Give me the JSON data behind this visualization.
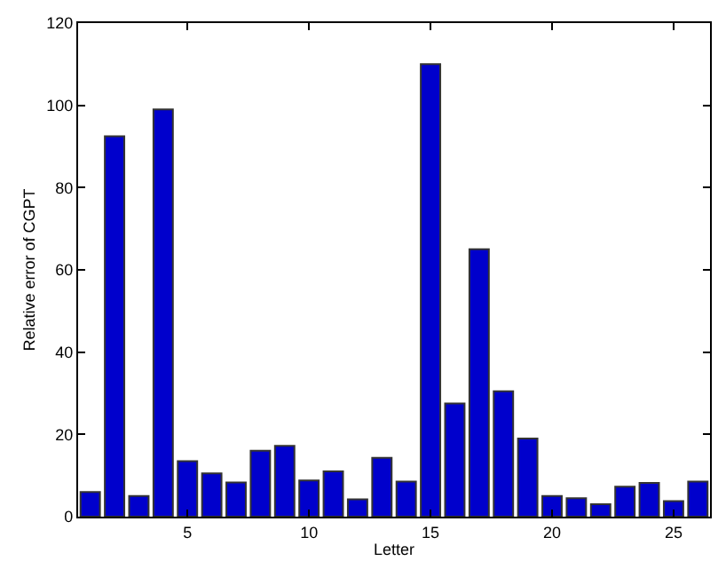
{
  "chart_data": {
    "type": "bar",
    "xlabel": "Letter",
    "ylabel": "Relative error of CGPT",
    "x": [
      1,
      2,
      3,
      4,
      5,
      6,
      7,
      8,
      9,
      10,
      11,
      12,
      13,
      14,
      15,
      16,
      17,
      18,
      19,
      20,
      21,
      22,
      23,
      24,
      25,
      26
    ],
    "values": [
      6,
      92.5,
      5,
      99,
      13.5,
      10.5,
      8.3,
      16,
      17.2,
      8.8,
      11,
      4.2,
      14.3,
      8.5,
      110,
      27.5,
      65,
      30.5,
      19,
      5,
      4.5,
      3,
      7.3,
      8.2,
      3.8,
      8.5
    ],
    "color": "#0000cc",
    "xlim": [
      0.5,
      26.5
    ],
    "xticks": [
      5,
      10,
      15,
      20,
      25
    ],
    "ylim": [
      0,
      120
    ],
    "yticks": [
      0,
      20,
      40,
      60,
      80,
      100,
      120
    ],
    "legend": false
  }
}
